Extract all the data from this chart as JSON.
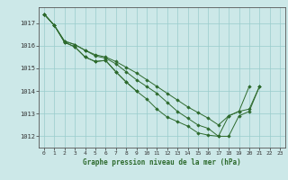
{
  "title": "Graphe pression niveau de la mer (hPa)",
  "bg_color": "#cce8e8",
  "grid_color": "#99cccc",
  "line_color": "#2d6a2d",
  "marker_color": "#2d6a2d",
  "xlim": [
    -0.5,
    23.5
  ],
  "ylim": [
    1011.5,
    1017.7
  ],
  "yticks": [
    1012,
    1013,
    1014,
    1015,
    1016,
    1017
  ],
  "xticks": [
    0,
    1,
    2,
    3,
    4,
    5,
    6,
    7,
    8,
    9,
    10,
    11,
    12,
    13,
    14,
    15,
    16,
    17,
    18,
    19,
    20,
    21,
    22,
    23
  ],
  "series": [
    [
      1017.4,
      1016.9,
      1016.15,
      1015.95,
      1015.5,
      1015.3,
      1015.35,
      1014.85,
      1014.4,
      1014.0,
      1013.65,
      1013.2,
      1012.85,
      1012.65,
      1012.45,
      1012.15,
      1012.05,
      1012.0,
      1012.9,
      1013.1,
      1014.2,
      null,
      null,
      null
    ],
    [
      1017.4,
      1016.9,
      1016.15,
      1015.95,
      1015.5,
      1015.3,
      1015.35,
      1014.85,
      1014.4,
      1014.0,
      null,
      null,
      null,
      null,
      null,
      null,
      null,
      null,
      null,
      null,
      null,
      null,
      null,
      null
    ],
    [
      1017.4,
      1016.9,
      1016.2,
      1016.05,
      1015.8,
      1015.6,
      1015.5,
      1015.3,
      1015.05,
      1014.8,
      1014.5,
      1014.2,
      1013.9,
      1013.6,
      1013.3,
      1013.05,
      1012.8,
      1012.5,
      1012.9,
      1013.1,
      1013.2,
      1014.2,
      null,
      null
    ],
    [
      1017.4,
      1016.9,
      1016.2,
      1016.05,
      1015.8,
      1015.55,
      1015.45,
      1015.2,
      1014.85,
      1014.5,
      1014.2,
      1013.9,
      1013.5,
      1013.1,
      1012.8,
      1012.5,
      1012.35,
      1012.0,
      1012.0,
      1012.9,
      1013.1,
      1014.2,
      null,
      null
    ]
  ]
}
